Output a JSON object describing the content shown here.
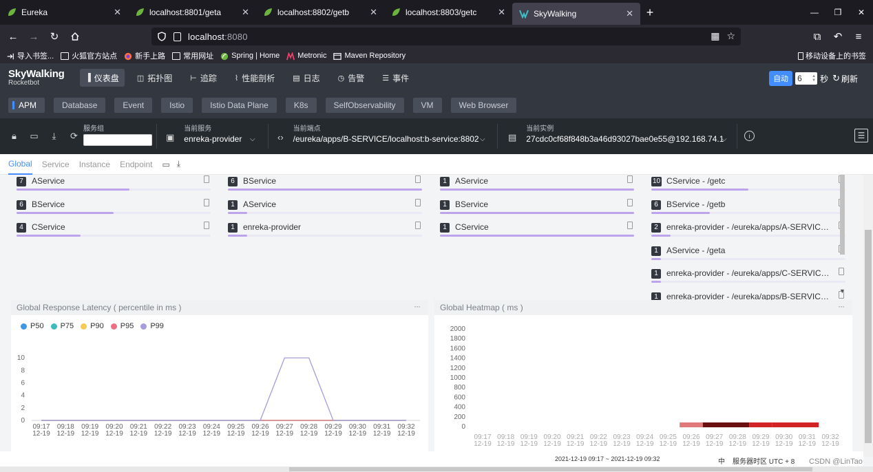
{
  "browser": {
    "tabs": [
      {
        "title": "Eureka",
        "icon": "spring-leaf-icon",
        "active": false
      },
      {
        "title": "localhost:8801/geta",
        "icon": "spring-leaf-icon",
        "active": false
      },
      {
        "title": "localhost:8802/getb",
        "icon": "spring-leaf-icon",
        "active": false
      },
      {
        "title": "localhost:8803/getc",
        "icon": "spring-leaf-icon",
        "active": false
      },
      {
        "title": "SkyWalking",
        "icon": "skywalking-icon",
        "active": true
      }
    ],
    "url_host": "localhost",
    "url_port": ":8080",
    "bookmarks": [
      {
        "label": "导入书签...",
        "icon": "import-icon"
      },
      {
        "label": "火狐官方站点",
        "icon": "folder-icon"
      },
      {
        "label": "新手上路",
        "icon": "firefox-icon"
      },
      {
        "label": "常用网址",
        "icon": "folder-icon"
      },
      {
        "label": "Spring | Home",
        "icon": "spring-leaf-icon"
      },
      {
        "label": "Metronic",
        "icon": "metronic-icon"
      },
      {
        "label": "Maven Repository",
        "icon": "maven-icon"
      }
    ],
    "mobile_bookmarks": "移动设备上的书签"
  },
  "app": {
    "logo_line1": "SkyWalking",
    "logo_line2": "Rocketbot",
    "nav": [
      {
        "label": "仪表盘",
        "icon": "dashboard-icon",
        "active": true
      },
      {
        "label": "拓扑图",
        "icon": "topology-icon",
        "active": false
      },
      {
        "label": "追踪",
        "icon": "trace-icon",
        "active": false
      },
      {
        "label": "性能剖析",
        "icon": "profile-icon",
        "active": false
      },
      {
        "label": "日志",
        "icon": "log-icon",
        "active": false
      },
      {
        "label": "告警",
        "icon": "alarm-icon",
        "active": false
      },
      {
        "label": "事件",
        "icon": "event-icon",
        "active": false
      }
    ],
    "auto_label": "自动",
    "interval_value": "6",
    "interval_unit": "秒",
    "refresh_label": "刷新"
  },
  "layers": [
    "APM",
    "Database",
    "Event",
    "Istio",
    "Istio Data Plane",
    "K8s",
    "SelfObservability",
    "VM",
    "Web Browser"
  ],
  "selectors": {
    "group_label": "服务组",
    "group_value": "",
    "service_label": "当前服务",
    "service_value": "enreka-provider",
    "endpoint_label": "当前端点",
    "endpoint_value": "/eureka/apps/B-SERVICE/localhost:b-service:8802",
    "instance_label": "当前实例",
    "instance_value": "27cdc0cf68f848b3a46d93027bae0e55@192.168.74.1"
  },
  "dash_tabs": [
    "Global",
    "Service",
    "Instance",
    "Endpoint"
  ],
  "top_lists": [
    [
      {
        "count": "7",
        "name": "AService",
        "fraction": 0.58
      },
      {
        "count": "6",
        "name": "BService",
        "fraction": 0.5
      },
      {
        "count": "4",
        "name": "CService",
        "fraction": 0.33
      }
    ],
    [
      {
        "count": "6",
        "name": "BService",
        "fraction": 1.0
      },
      {
        "count": "1",
        "name": "AService",
        "fraction": 0.1
      },
      {
        "count": "1",
        "name": "enreka-provider",
        "fraction": 0.1
      }
    ],
    [
      {
        "count": "1",
        "name": "AService",
        "fraction": 1.0
      },
      {
        "count": "1",
        "name": "BService",
        "fraction": 1.0
      },
      {
        "count": "1",
        "name": "CService",
        "fraction": 1.0
      }
    ],
    [
      {
        "count": "10",
        "name": "CService - /getc",
        "fraction": 0.5
      },
      {
        "count": "6",
        "name": "BService - /getb",
        "fraction": 0.3
      },
      {
        "count": "2",
        "name": "enreka-provider - /eureka/apps/A-SERVICE...",
        "fraction": 0.1
      },
      {
        "count": "1",
        "name": "AService - /geta",
        "fraction": 0.05
      },
      {
        "count": "1",
        "name": "enreka-provider - /eureka/apps/C-SERVICE...",
        "fraction": 0.05
      },
      {
        "count": "1",
        "name": "enreka-provider - /eureka/apps/B-SERVICE...",
        "fraction": 0.05
      }
    ]
  ],
  "latency_panel": {
    "title": "Global Response Latency ( percentile in ms )",
    "more": "···"
  },
  "heatmap_panel": {
    "title": "Global Heatmap ( ms )",
    "more": "···"
  },
  "chart_data": [
    {
      "type": "line",
      "title": "Global Response Latency ( percentile in ms )",
      "x": [
        "09:17\n12-19",
        "09:18\n12-19",
        "09:19\n12-19",
        "09:20\n12-19",
        "09:21\n12-19",
        "09:22\n12-19",
        "09:23\n12-19",
        "09:24\n12-19",
        "09:25\n12-19",
        "09:26\n12-19",
        "09:27\n12-19",
        "09:28\n12-19",
        "09:29\n12-19",
        "09:30\n12-19",
        "09:31\n12-19",
        "09:32\n12-19"
      ],
      "series": [
        {
          "name": "P50",
          "color": "#3f96e3",
          "values": [
            0,
            0,
            0,
            0,
            0,
            0,
            0,
            0,
            0,
            0,
            0,
            0,
            0,
            0,
            0,
            0
          ]
        },
        {
          "name": "P75",
          "color": "#3fbbc0",
          "values": [
            0,
            0,
            0,
            0,
            0,
            0,
            0,
            0,
            0,
            0,
            0,
            0,
            0,
            0,
            0,
            0
          ]
        },
        {
          "name": "P90",
          "color": "#f5c952",
          "values": [
            0,
            0,
            0,
            0,
            0,
            0,
            0,
            0,
            0,
            0,
            0,
            0,
            0,
            0,
            0,
            0
          ]
        },
        {
          "name": "P95",
          "color": "#ee6f82",
          "values": [
            0,
            0,
            0,
            0,
            0,
            0,
            0,
            0,
            0,
            0,
            0,
            0,
            0,
            0,
            0,
            0
          ]
        },
        {
          "name": "P99",
          "color": "#a59bdd",
          "values": [
            0,
            0,
            0,
            0,
            0,
            0,
            0,
            0,
            0,
            0,
            10,
            10,
            0,
            0,
            0,
            0
          ]
        }
      ],
      "yticks": [
        0,
        2,
        4,
        6,
        8,
        10
      ],
      "ylim": [
        0,
        11
      ],
      "legend": "top-left",
      "grid": false
    },
    {
      "type": "heatmap",
      "title": "Global Heatmap ( ms )",
      "x": [
        "09:17\n12-19",
        "09:18\n12-19",
        "09:19\n12-19",
        "09:20\n12-19",
        "09:21\n12-19",
        "09:22\n12-19",
        "09:23\n12-19",
        "09:24\n12-19",
        "09:25\n12-19",
        "09:26\n12-19",
        "09:27\n12-19",
        "09:28\n12-19",
        "09:29\n12-19",
        "09:30\n12-19",
        "09:31\n12-19",
        "09:32\n12-19"
      ],
      "yticks": [
        0,
        200,
        400,
        600,
        800,
        1000,
        1200,
        1400,
        1600,
        1800,
        2000
      ],
      "ylim": [
        0,
        2000
      ],
      "cells": [
        {
          "x": "09:26",
          "y": 0,
          "color": "#e07a7a"
        },
        {
          "x": "09:27",
          "y": 0,
          "color": "#6b1010"
        },
        {
          "x": "09:28",
          "y": 0,
          "color": "#6b1010"
        },
        {
          "x": "09:29",
          "y": 0,
          "color": "#d22424"
        },
        {
          "x": "09:30",
          "y": 0,
          "color": "#d22424"
        },
        {
          "x": "09:31",
          "y": 0,
          "color": "#d22424"
        }
      ]
    }
  ],
  "status": {
    "time_range": "2021-12-19 09:17 ~ 2021-12-19 09:32",
    "lang": "中",
    "timezone": "服务器时区 UTC + 8"
  },
  "watermark": "CSDN @LinTao"
}
